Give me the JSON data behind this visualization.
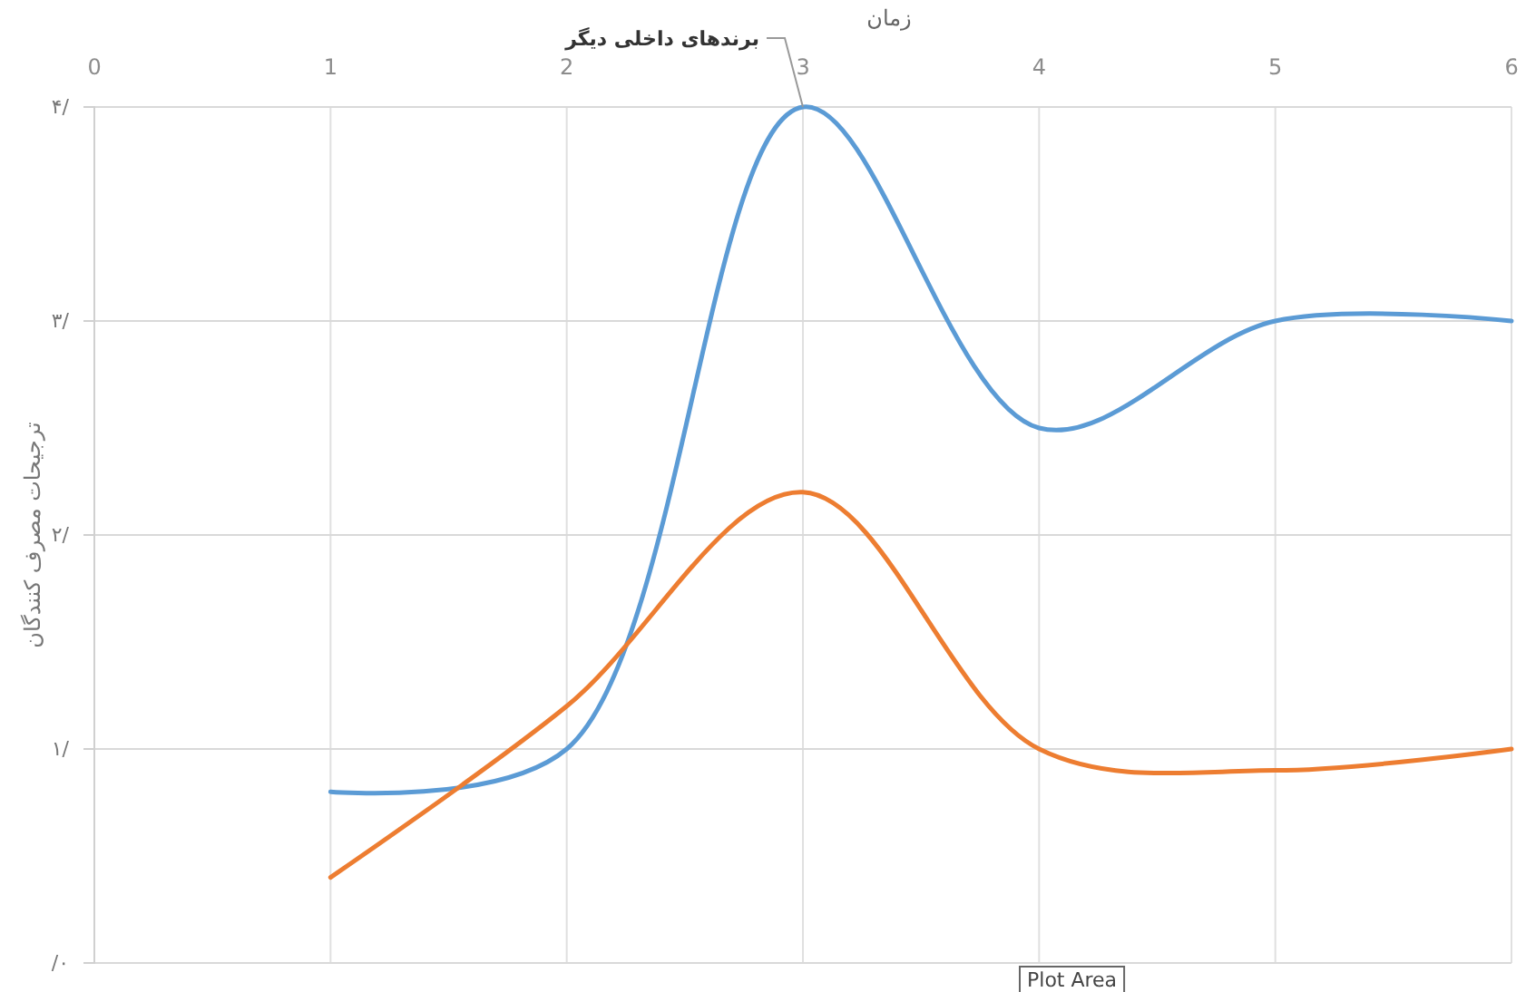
{
  "chart_data": {
    "type": "line",
    "xlabel": "زمان",
    "ylabel": "ترجیحات مصرف کنندگان",
    "x": [
      1,
      2,
      3,
      4,
      5,
      6
    ],
    "series": [
      {
        "name": "برندهای داخلی دیگر",
        "color": "#5b9bd5",
        "values": [
          0.8,
          1.0,
          4.0,
          2.5,
          3.0,
          3.0
        ]
      },
      {
        "color": "#ed7d31",
        "values": [
          0.4,
          1.2,
          2.2,
          1.0,
          0.9,
          1.0
        ]
      }
    ],
    "xlim": [
      0,
      6
    ],
    "xticks": [
      0,
      1,
      2,
      3,
      4,
      5,
      6
    ],
    "ylim": [
      0,
      4
    ],
    "yticks": [
      {
        "value": 0,
        "label": "/۰"
      },
      {
        "value": 1,
        "label": "۱/"
      },
      {
        "value": 2,
        "label": "۲/"
      },
      {
        "value": 3,
        "label": "۳/"
      },
      {
        "value": 4,
        "label": "۴/"
      }
    ],
    "grid": true,
    "legend": false,
    "marker": "none",
    "line_style": "solid",
    "annotations": [
      "Plot Area"
    ]
  }
}
